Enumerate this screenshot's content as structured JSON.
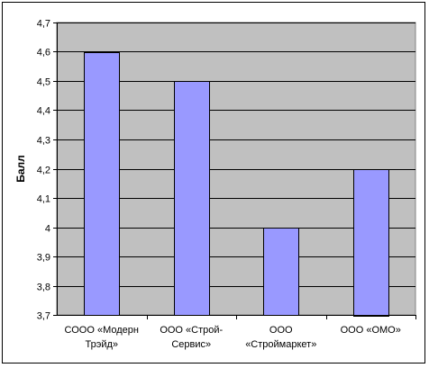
{
  "chart_data": {
    "type": "bar",
    "categories": [
      [
        "СООО «Модерн",
        "Трэйд»"
      ],
      [
        "ООО «Строй-",
        "Сервис»"
      ],
      [
        "ООО",
        "«Строймаркет»"
      ],
      [
        "ООО «ОМО»"
      ]
    ],
    "values": [
      4.6,
      4.5,
      4.0,
      4.2
    ],
    "ylabel": "Балл",
    "xlabel": "",
    "title": "",
    "ylim": [
      3.7,
      4.7
    ],
    "yticks": [
      "3,7",
      "3,8",
      "3,9",
      "4",
      "4,1",
      "4,2",
      "4,3",
      "4,4",
      "4,5",
      "4,6",
      "4,7"
    ],
    "grid": true,
    "legend": "none",
    "colors": {
      "plot_background": "#c0c0c0",
      "bar_fill": "#9999ff",
      "bar_stroke": "#000000",
      "grid": "#000000"
    }
  }
}
